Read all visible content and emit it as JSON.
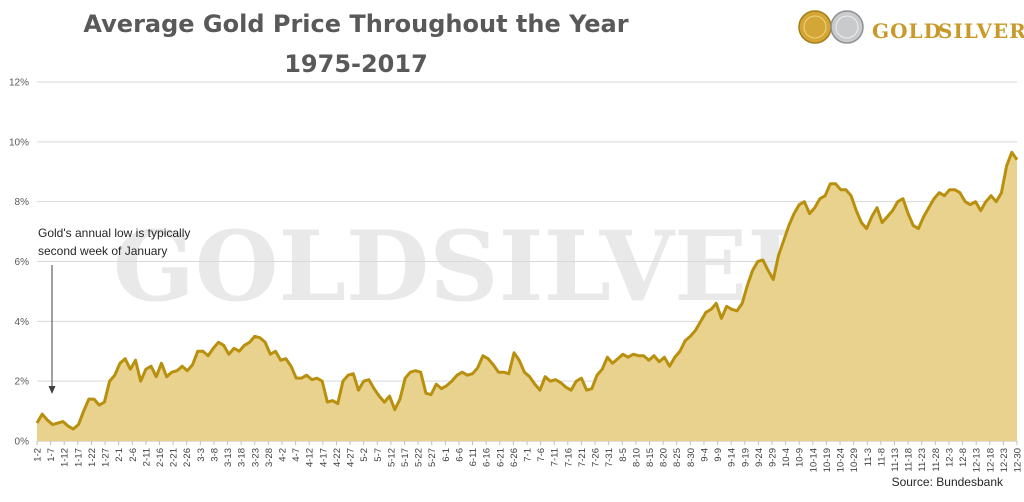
{
  "brand": {
    "logo_word_1": "GOLD",
    "logo_word_2": "SILVER",
    "watermark": "GOLDSILVER",
    "accent_color": "#b8900e",
    "fill_color": "#e9d18e"
  },
  "chart_data": {
    "type": "area",
    "title_line1": "Average Gold Price Throughout the Year",
    "title_line2": "1975-2017",
    "xlabel": "",
    "ylabel": "",
    "source": "Source: Bundesbank",
    "ylim": [
      0,
      12
    ],
    "yticks": [
      "0%",
      "2%",
      "4%",
      "6%",
      "8%",
      "10%",
      "12%"
    ],
    "grid": true,
    "annotation": {
      "line1": "Gold's annual low is typically",
      "line2": "second week of January",
      "arrow_x": "1-7"
    },
    "x_tick_labels": [
      "1-2",
      "1-7",
      "1-12",
      "1-17",
      "1-22",
      "1-27",
      "2-1",
      "2-6",
      "2-11",
      "2-16",
      "2-21",
      "2-26",
      "3-3",
      "3-8",
      "3-13",
      "3-18",
      "3-23",
      "3-28",
      "4-2",
      "4-7",
      "4-12",
      "4-17",
      "4-22",
      "4-27",
      "5-2",
      "5-7",
      "5-12",
      "5-17",
      "5-22",
      "5-27",
      "6-1",
      "6-6",
      "6-11",
      "6-16",
      "6-21",
      "6-26",
      "7-1",
      "7-6",
      "7-11",
      "7-16",
      "7-21",
      "7-26",
      "7-31",
      "8-5",
      "8-10",
      "8-15",
      "8-20",
      "8-25",
      "8-30",
      "9-4",
      "9-9",
      "9-14",
      "9-19",
      "9-24",
      "9-29",
      "10-4",
      "10-9",
      "10-14",
      "10-19",
      "10-24",
      "10-29",
      "11-3",
      "11-8",
      "11-13",
      "11-18",
      "11-23",
      "11-28",
      "12-3",
      "12-8",
      "12-13",
      "12-18",
      "12-23",
      "12-30"
    ],
    "series": [
      {
        "values": [
          [
            0,
            0.6
          ],
          [
            1,
            0.9
          ],
          [
            2,
            0.7
          ],
          [
            3,
            0.55
          ],
          [
            4,
            0.6
          ],
          [
            5,
            0.65
          ],
          [
            6,
            0.5
          ],
          [
            7,
            0.4
          ],
          [
            8,
            0.55
          ],
          [
            9,
            1.0
          ],
          [
            10,
            1.4
          ],
          [
            11,
            1.4
          ],
          [
            12,
            1.2
          ],
          [
            13,
            1.3
          ],
          [
            14,
            2.0
          ],
          [
            15,
            2.2
          ],
          [
            16,
            2.6
          ],
          [
            17,
            2.75
          ],
          [
            18,
            2.4
          ],
          [
            19,
            2.7
          ],
          [
            20,
            2.0
          ],
          [
            21,
            2.4
          ],
          [
            22,
            2.5
          ],
          [
            23,
            2.15
          ],
          [
            24,
            2.6
          ],
          [
            25,
            2.15
          ],
          [
            26,
            2.3
          ],
          [
            27,
            2.35
          ],
          [
            28,
            2.5
          ],
          [
            29,
            2.35
          ],
          [
            30,
            2.55
          ],
          [
            31,
            3.0
          ],
          [
            32,
            3.0
          ],
          [
            33,
            2.85
          ],
          [
            34,
            3.1
          ],
          [
            35,
            3.3
          ],
          [
            36,
            3.2
          ],
          [
            37,
            2.9
          ],
          [
            38,
            3.1
          ],
          [
            39,
            3.0
          ],
          [
            40,
            3.2
          ],
          [
            41,
            3.3
          ],
          [
            42,
            3.5
          ],
          [
            43,
            3.45
          ],
          [
            44,
            3.3
          ],
          [
            45,
            2.9
          ],
          [
            46,
            3.0
          ],
          [
            47,
            2.7
          ],
          [
            48,
            2.75
          ],
          [
            49,
            2.5
          ],
          [
            50,
            2.1
          ],
          [
            51,
            2.1
          ],
          [
            52,
            2.2
          ],
          [
            53,
            2.05
          ],
          [
            54,
            2.1
          ],
          [
            55,
            2.0
          ],
          [
            56,
            1.3
          ],
          [
            57,
            1.35
          ],
          [
            58,
            1.25
          ],
          [
            59,
            2.0
          ],
          [
            60,
            2.2
          ],
          [
            61,
            2.25
          ],
          [
            62,
            1.7
          ],
          [
            63,
            2.0
          ],
          [
            64,
            2.05
          ],
          [
            65,
            1.75
          ],
          [
            66,
            1.5
          ],
          [
            67,
            1.3
          ],
          [
            68,
            1.5
          ],
          [
            69,
            1.05
          ],
          [
            70,
            1.4
          ],
          [
            71,
            2.1
          ],
          [
            72,
            2.3
          ],
          [
            73,
            2.35
          ],
          [
            74,
            2.3
          ],
          [
            75,
            1.6
          ],
          [
            76,
            1.55
          ],
          [
            77,
            1.9
          ],
          [
            78,
            1.75
          ],
          [
            79,
            1.85
          ],
          [
            80,
            2.0
          ],
          [
            81,
            2.2
          ],
          [
            82,
            2.3
          ],
          [
            83,
            2.2
          ],
          [
            84,
            2.25
          ],
          [
            85,
            2.45
          ],
          [
            86,
            2.85
          ],
          [
            87,
            2.75
          ],
          [
            88,
            2.55
          ],
          [
            89,
            2.3
          ],
          [
            90,
            2.3
          ],
          [
            91,
            2.25
          ],
          [
            92,
            2.95
          ],
          [
            93,
            2.7
          ],
          [
            94,
            2.3
          ],
          [
            95,
            2.15
          ],
          [
            96,
            1.9
          ],
          [
            97,
            1.7
          ],
          [
            98,
            2.15
          ],
          [
            99,
            2.0
          ],
          [
            100,
            2.05
          ],
          [
            101,
            1.95
          ],
          [
            102,
            1.8
          ],
          [
            103,
            1.7
          ],
          [
            104,
            2.0
          ],
          [
            105,
            2.1
          ],
          [
            106,
            1.7
          ],
          [
            107,
            1.75
          ],
          [
            108,
            2.2
          ],
          [
            109,
            2.4
          ],
          [
            110,
            2.8
          ],
          [
            111,
            2.6
          ],
          [
            112,
            2.75
          ],
          [
            113,
            2.9
          ],
          [
            114,
            2.8
          ],
          [
            115,
            2.9
          ],
          [
            116,
            2.85
          ],
          [
            117,
            2.85
          ],
          [
            118,
            2.7
          ],
          [
            119,
            2.85
          ],
          [
            120,
            2.65
          ],
          [
            121,
            2.8
          ],
          [
            122,
            2.5
          ],
          [
            123,
            2.8
          ],
          [
            124,
            3.0
          ],
          [
            125,
            3.35
          ],
          [
            126,
            3.5
          ],
          [
            127,
            3.7
          ],
          [
            128,
            4.0
          ],
          [
            129,
            4.3
          ],
          [
            130,
            4.4
          ],
          [
            131,
            4.6
          ],
          [
            132,
            4.1
          ],
          [
            133,
            4.5
          ],
          [
            134,
            4.4
          ],
          [
            135,
            4.35
          ],
          [
            136,
            4.6
          ],
          [
            137,
            5.2
          ],
          [
            138,
            5.7
          ],
          [
            139,
            6.0
          ],
          [
            140,
            6.05
          ],
          [
            141,
            5.7
          ],
          [
            142,
            5.4
          ],
          [
            143,
            6.2
          ],
          [
            144,
            6.7
          ],
          [
            145,
            7.2
          ],
          [
            146,
            7.6
          ],
          [
            147,
            7.9
          ],
          [
            148,
            8.0
          ],
          [
            149,
            7.6
          ],
          [
            150,
            7.8
          ],
          [
            151,
            8.1
          ],
          [
            152,
            8.2
          ],
          [
            153,
            8.6
          ],
          [
            154,
            8.6
          ],
          [
            155,
            8.4
          ],
          [
            156,
            8.4
          ],
          [
            157,
            8.2
          ],
          [
            158,
            7.7
          ],
          [
            159,
            7.3
          ],
          [
            160,
            7.1
          ],
          [
            161,
            7.5
          ],
          [
            162,
            7.8
          ],
          [
            163,
            7.3
          ],
          [
            164,
            7.5
          ],
          [
            165,
            7.7
          ],
          [
            166,
            8.0
          ],
          [
            167,
            8.1
          ],
          [
            168,
            7.6
          ],
          [
            169,
            7.2
          ],
          [
            170,
            7.1
          ],
          [
            171,
            7.5
          ],
          [
            172,
            7.8
          ],
          [
            173,
            8.1
          ],
          [
            174,
            8.3
          ],
          [
            175,
            8.2
          ],
          [
            176,
            8.4
          ],
          [
            177,
            8.4
          ],
          [
            178,
            8.3
          ],
          [
            179,
            8.0
          ],
          [
            180,
            7.9
          ],
          [
            181,
            8.0
          ],
          [
            182,
            7.7
          ],
          [
            183,
            8.0
          ],
          [
            184,
            8.2
          ],
          [
            185,
            8.0
          ],
          [
            186,
            8.3
          ],
          [
            187,
            9.2
          ],
          [
            188,
            9.65
          ],
          [
            189,
            9.4
          ]
        ]
      }
    ]
  }
}
